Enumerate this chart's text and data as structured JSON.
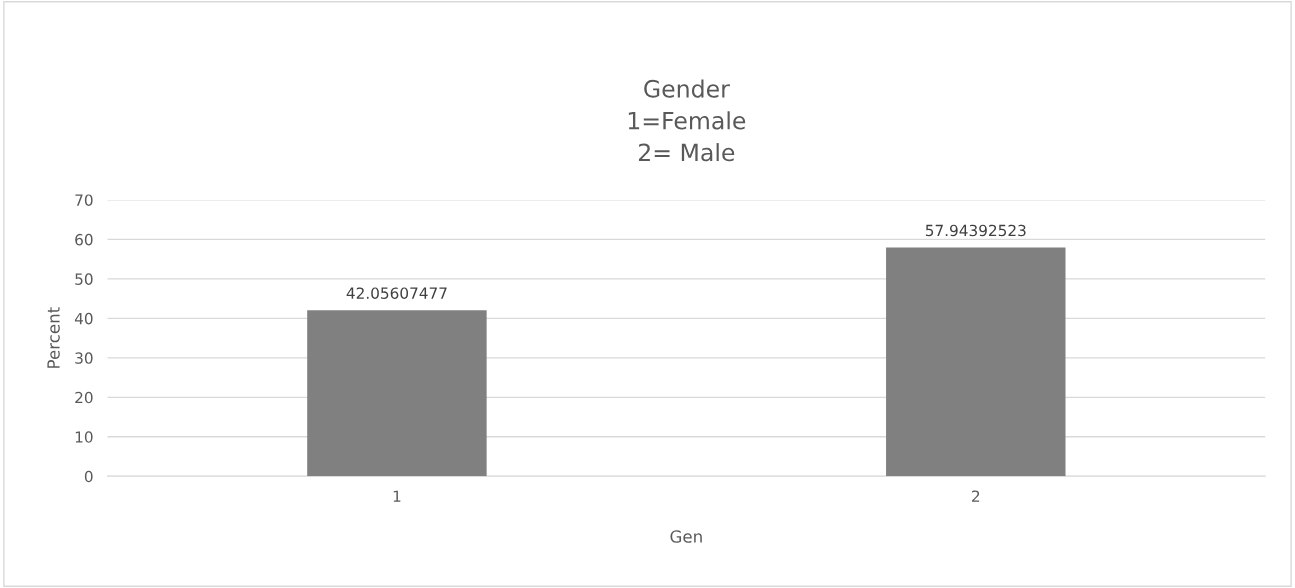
{
  "chart_data": {
    "type": "bar",
    "title": "Gender\n1=Female\n2= Male",
    "xlabel": "Gen",
    "ylabel": "Percent",
    "categories": [
      "1",
      "2"
    ],
    "values": [
      42.05607477,
      57.94392523
    ],
    "color": "#808080",
    "ylim": [
      0,
      70
    ],
    "yticks": [
      0,
      10,
      20,
      30,
      40,
      50,
      60,
      70
    ],
    "grid": "y",
    "data_labels": true
  }
}
